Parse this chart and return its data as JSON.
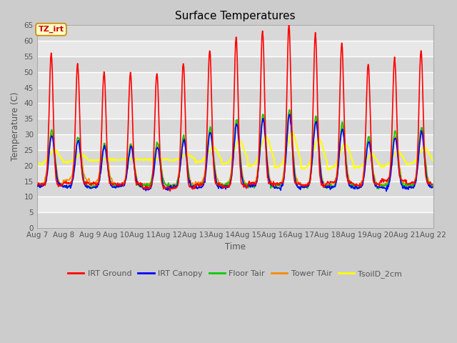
{
  "title": "Surface Temperatures",
  "xlabel": "Time",
  "ylabel": "Temperature (C)",
  "ylim": [
    0,
    65
  ],
  "yticks": [
    0,
    5,
    10,
    15,
    20,
    25,
    30,
    35,
    40,
    45,
    50,
    55,
    60,
    65
  ],
  "annotation_text": "TZ_irt",
  "series": {
    "IRT Ground": {
      "color": "#ff0000",
      "lw": 1.2
    },
    "IRT Canopy": {
      "color": "#0000ff",
      "lw": 1.2
    },
    "Floor Tair": {
      "color": "#00cc00",
      "lw": 1.2
    },
    "Tower TAir": {
      "color": "#ff8800",
      "lw": 1.2
    },
    "TsoilD_2cm": {
      "color": "#ffff00",
      "lw": 1.5
    }
  },
  "bg_color": "#cccccc",
  "plot_bg": "#e8e8e8",
  "grid_color": "#ffffff",
  "font_color": "#555555",
  "band_colors": [
    "#e0e0e0",
    "#d0d0d0"
  ]
}
